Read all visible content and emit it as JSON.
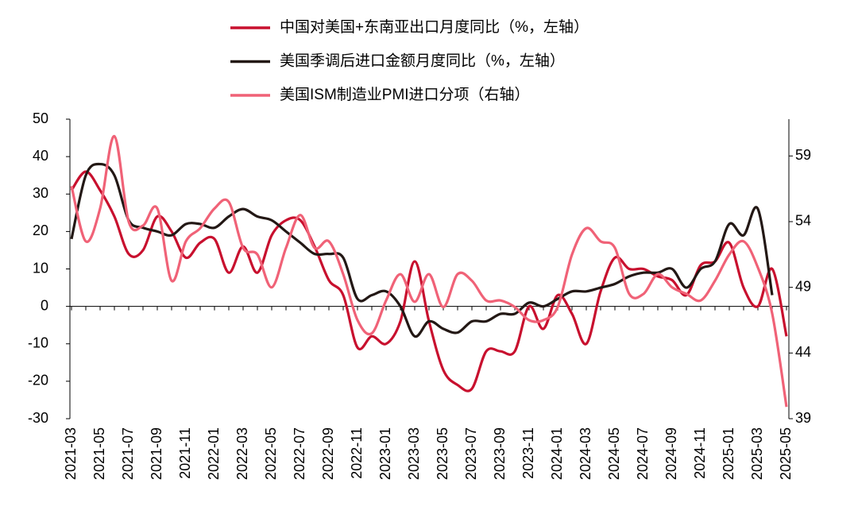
{
  "chart_data": {
    "type": "line",
    "categories": [
      "2021-03",
      null,
      "2021-05",
      null,
      "2021-07",
      null,
      "2021-09",
      null,
      "2021-11",
      null,
      "2022-01",
      null,
      "2022-03",
      null,
      "2022-05",
      null,
      "2022-07",
      null,
      "2022-09",
      null,
      "2022-11",
      null,
      "2023-01",
      null,
      "2023-03",
      null,
      "2023-05",
      null,
      "2023-07",
      null,
      "2023-09",
      null,
      "2023-11",
      null,
      "2024-01",
      null,
      "2024-03",
      null,
      "2024-05",
      null,
      "2024-07",
      null,
      "2024-09",
      null,
      "2024-11",
      null,
      "2025-01",
      null,
      "2025-03",
      null,
      "2025-05"
    ],
    "series": [
      {
        "name": "中国对美国+东南亚出口月度同比（%，左轴）",
        "color": "#c8102e",
        "values": [
          31,
          36,
          31,
          24,
          14,
          15,
          24,
          20,
          13,
          17,
          18,
          9,
          16,
          9,
          19,
          23,
          23,
          16,
          7,
          3,
          -11,
          -8,
          -10,
          -4,
          12,
          -4,
          -17,
          -21,
          -22,
          -12,
          -12,
          -12,
          0,
          -6,
          3,
          -2,
          -10,
          4,
          13,
          10,
          10,
          8,
          7,
          3,
          11,
          12,
          17,
          5,
          0,
          10,
          -8
        ]
      },
      {
        "name": "美国季调后进口金额月度同比（%，左轴）",
        "color": "#231815",
        "values": [
          18,
          35,
          38,
          35,
          23,
          21,
          20,
          19,
          22,
          22,
          21,
          24,
          26,
          24,
          23,
          20,
          17,
          14,
          14,
          13,
          2,
          3,
          4,
          0,
          -8,
          -4,
          -6,
          -7,
          -4,
          -4,
          -2,
          -2,
          1,
          0,
          2,
          4,
          4,
          5,
          6,
          8,
          9,
          9,
          10,
          5,
          10,
          12,
          22,
          19,
          26,
          3,
          null
        ]
      },
      {
        "name": "美国ISM制造业PMI进口分项（右轴）",
        "color": "#f06277",
        "axis": "y2",
        "values": [
          56.7,
          52.5,
          55,
          60.5,
          54,
          53.7,
          55,
          49.5,
          52.5,
          53.5,
          55,
          55.5,
          52,
          51.5,
          49,
          52,
          54.5,
          52,
          52.5,
          50,
          46.5,
          45.5,
          48,
          50,
          47.9,
          50,
          47.5,
          50,
          49.5,
          48,
          48,
          47.5,
          46.5,
          46.5,
          47.5,
          51.5,
          53.5,
          52.5,
          52,
          48.5,
          48.5,
          50,
          49,
          48.5,
          48,
          49.5,
          51.5,
          52.5,
          50.5,
          47,
          39.9
        ]
      }
    ],
    "ylim": [
      -30,
      50
    ],
    "yticks": [
      -30,
      -20,
      -10,
      0,
      10,
      20,
      30,
      40,
      50
    ],
    "y2lim": [
      39,
      61.8
    ],
    "y2ticks": [
      39,
      44,
      49,
      54,
      59
    ],
    "grid": false
  }
}
